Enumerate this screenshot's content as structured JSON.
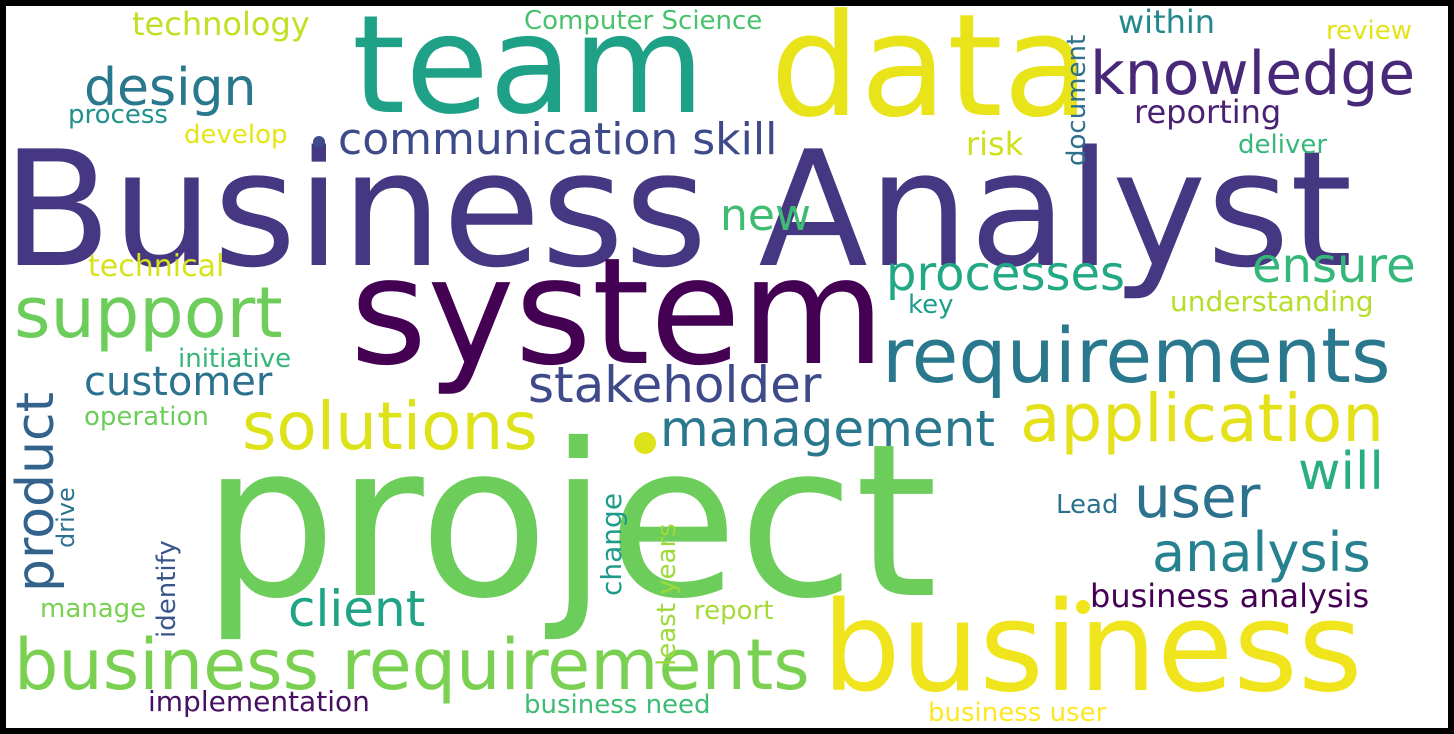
{
  "words": [
    {
      "key": "business_analyst",
      "text": "Business Analyst",
      "color": "#453781"
    },
    {
      "key": "project",
      "text": "project",
      "color": "#6ccd5a"
    },
    {
      "key": "system",
      "text": "system",
      "color": "#440154"
    },
    {
      "key": "team",
      "text": "team",
      "color": "#1fa187"
    },
    {
      "key": "data",
      "text": "data",
      "color": "#e8e419"
    },
    {
      "key": "business",
      "text": "business",
      "color": "#f0e51c"
    },
    {
      "key": "requirements",
      "text": "requirements",
      "color": "#2a788e"
    },
    {
      "key": "business_requirements",
      "text": "business requirements",
      "color": "#7ad151"
    },
    {
      "key": "knowledge",
      "text": "knowledge",
      "color": "#482878"
    },
    {
      "key": "application",
      "text": "application",
      "color": "#e4e11a"
    },
    {
      "key": "support",
      "text": "support",
      "color": "#6ccd5a"
    },
    {
      "key": "solutions",
      "text": "solutions",
      "color": "#dde318"
    },
    {
      "key": "management",
      "text": "management",
      "color": "#2a788e"
    },
    {
      "key": "stakeholder",
      "text": "stakeholder",
      "color": "#3e4a89"
    },
    {
      "key": "communication_skill",
      "text": "communication skill",
      "color": "#3e4a89"
    },
    {
      "key": "processes",
      "text": "processes",
      "color": "#22a884"
    },
    {
      "key": "analysis",
      "text": "analysis",
      "color": "#26828e"
    },
    {
      "key": "design",
      "text": "design",
      "color": "#2a788e"
    },
    {
      "key": "user",
      "text": "user",
      "color": "#2c728e"
    },
    {
      "key": "ensure",
      "text": "ensure",
      "color": "#35b779"
    },
    {
      "key": "client",
      "text": "client",
      "color": "#20a486"
    },
    {
      "key": "will",
      "text": "will",
      "color": "#29af7f"
    },
    {
      "key": "product",
      "text": "product",
      "color": "#33638d"
    },
    {
      "key": "customer",
      "text": "customer",
      "color": "#2c728e"
    },
    {
      "key": "new",
      "text": "new",
      "color": "#3fbc73"
    },
    {
      "key": "business_analysis",
      "text": "business analysis",
      "color": "#440154"
    },
    {
      "key": "technology",
      "text": "technology",
      "color": "#c2df23"
    },
    {
      "key": "reporting",
      "text": "reporting",
      "color": "#482173"
    },
    {
      "key": "within",
      "text": "within",
      "color": "#23888e"
    },
    {
      "key": "understanding",
      "text": "understanding",
      "color": "#b5de2b"
    },
    {
      "key": "risk",
      "text": "risk",
      "color": "#d0e11c"
    },
    {
      "key": "document",
      "text": "document",
      "color": "#2d708e"
    },
    {
      "key": "technical",
      "text": "technical",
      "color": "#d8e219"
    },
    {
      "key": "implementation",
      "text": "implementation",
      "color": "#471063"
    },
    {
      "key": "business_user",
      "text": "business user",
      "color": "#fde725"
    },
    {
      "key": "business_need",
      "text": "business need",
      "color": "#3dbc74"
    },
    {
      "key": "computer_science",
      "text": "Computer Science",
      "color": "#4ac16d"
    },
    {
      "key": "review",
      "text": "review",
      "color": "#e2e418"
    },
    {
      "key": "develop",
      "text": "develop",
      "color": "#e5e419"
    },
    {
      "key": "process",
      "text": "process",
      "color": "#21918c"
    },
    {
      "key": "deliver",
      "text": "deliver",
      "color": "#37b878"
    },
    {
      "key": "initiative",
      "text": "initiative",
      "color": "#35b779"
    },
    {
      "key": "operation",
      "text": "operation",
      "color": "#6ccd5a"
    },
    {
      "key": "key",
      "text": "key",
      "color": "#1f9e89"
    },
    {
      "key": "lead",
      "text": "Lead",
      "color": "#2c728e"
    },
    {
      "key": "change",
      "text": "change",
      "color": "#1e9c89"
    },
    {
      "key": "least_years",
      "text": "least years",
      "color": "#9dd93b"
    },
    {
      "key": "identify",
      "text": "identify",
      "color": "#39558c"
    },
    {
      "key": "drive",
      "text": "drive",
      "color": "#2c728e"
    },
    {
      "key": "manage",
      "text": "manage",
      "color": "#7ad151"
    },
    {
      "key": "report",
      "text": "report",
      "color": "#a5db36"
    }
  ]
}
